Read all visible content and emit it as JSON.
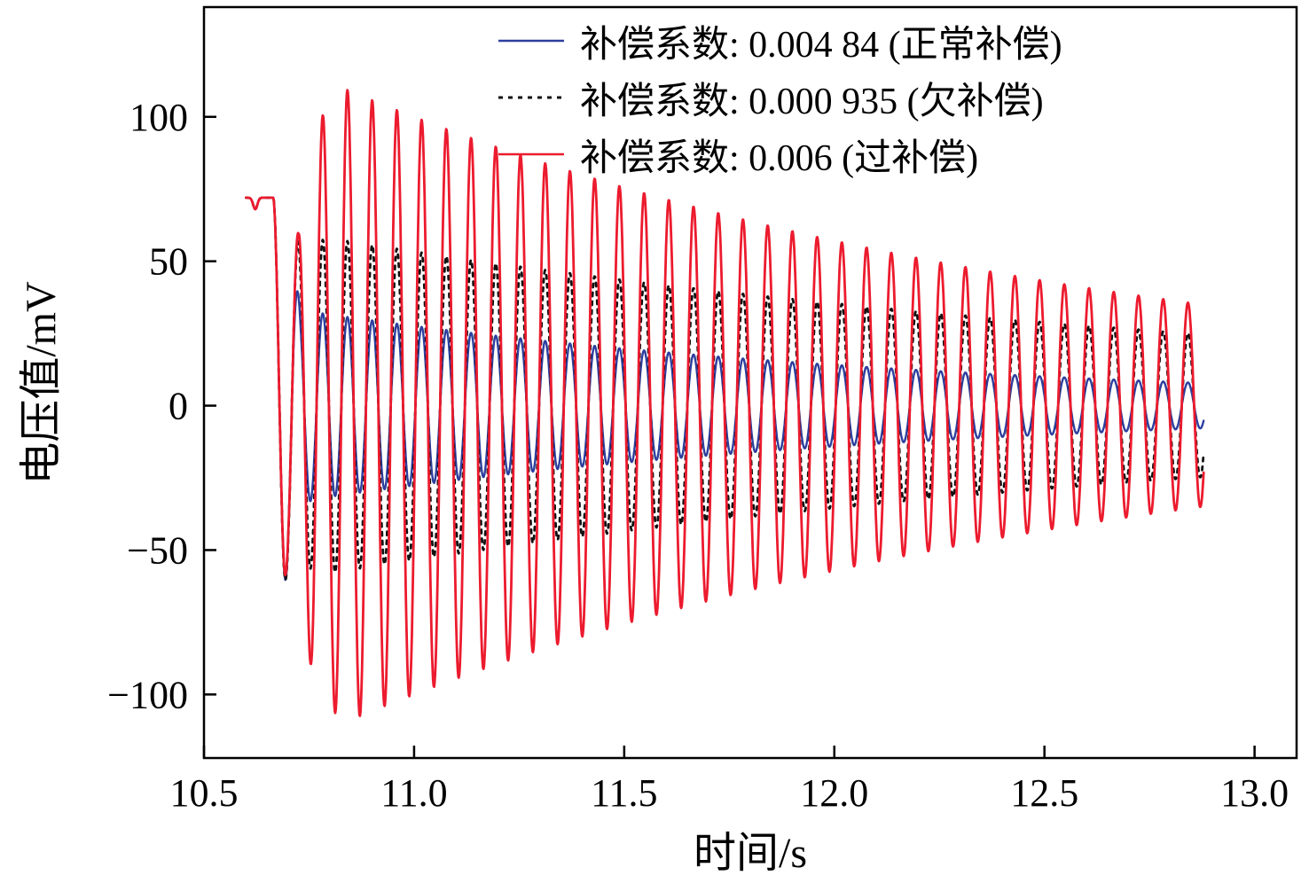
{
  "chart_data": {
    "type": "line",
    "title": "",
    "xlabel": "时间/s",
    "ylabel": "电压值/mV",
    "xlim": [
      10.5,
      13.1
    ],
    "ylim": [
      -122,
      138
    ],
    "x_ticks": [
      "10.5",
      "11.0",
      "11.5",
      "12.0",
      "12.5",
      "13.0"
    ],
    "x_tick_values": [
      10.5,
      11.0,
      11.5,
      12.0,
      12.5,
      13.0
    ],
    "y_ticks": [
      "100",
      "50",
      "0",
      "−50",
      "−100"
    ],
    "y_tick_values": [
      100,
      50,
      0,
      -50,
      -100
    ],
    "grid": false,
    "legend_position": "top-inside",
    "axis_color": "#000000",
    "background": "#ffffff",
    "series": [
      {
        "id": "normal",
        "name": "补偿系数: 0.004 84 (正常补偿)",
        "line_style": "solid",
        "color": "#2d3f9e",
        "width": 2.4,
        "signal": {
          "flat_start": 10.6,
          "flat_level": 72,
          "notch_t": 10.622,
          "notch_depth": 4,
          "osc_start": 10.665,
          "freq_hz": 17.0,
          "env_points": [
            [
              10.665,
              72
            ],
            [
              10.7,
              58
            ],
            [
              10.73,
              34
            ],
            [
              10.78,
              32
            ]
          ],
          "decay_rate": 0.67,
          "t_end": 12.88,
          "end_amplitude": 8
        }
      },
      {
        "id": "under",
        "name": "补偿系数: 0.000 935 (欠补偿)",
        "line_style": "dashed",
        "color": "#111111",
        "width": 2.8,
        "signal": {
          "flat_start": 10.6,
          "flat_level": 72,
          "notch_t": 10.622,
          "notch_depth": 4,
          "osc_start": 10.665,
          "freq_hz": 17.0,
          "env_points": [
            [
              10.665,
              72
            ],
            [
              10.7,
              58
            ],
            [
              10.74,
              56
            ],
            [
              10.8,
              58
            ]
          ],
          "decay_rate": 0.41,
          "t_end": 12.88,
          "end_amplitude": 25
        }
      },
      {
        "id": "over",
        "name": "补偿系数: 0.006 (过补偿)",
        "line_style": "solid",
        "color": "#ec1b2e",
        "width": 2.8,
        "signal": {
          "flat_start": 10.6,
          "flat_level": 72,
          "notch_t": 10.622,
          "notch_depth": 4,
          "osc_start": 10.665,
          "freq_hz": 17.0,
          "env_points": [
            [
              10.665,
              72
            ],
            [
              10.7,
              56
            ],
            [
              10.725,
              60
            ],
            [
              10.76,
              96
            ],
            [
              10.83,
              110
            ]
          ],
          "decay_rate": 0.56,
          "t_end": 12.88,
          "end_amplitude": 35
        }
      }
    ]
  }
}
